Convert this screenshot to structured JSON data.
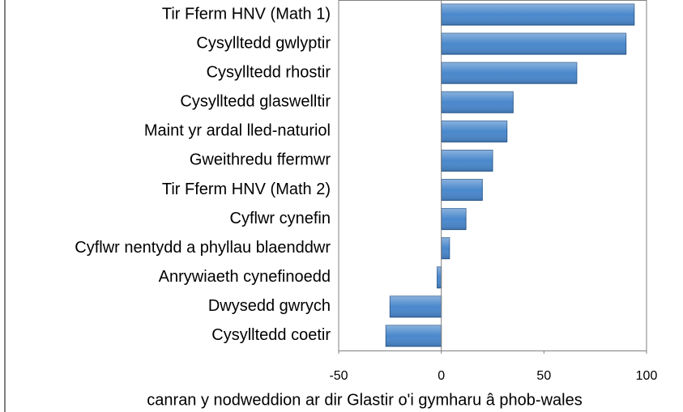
{
  "chart_data": {
    "type": "bar",
    "orientation": "horizontal",
    "categories": [
      "Tir Fferm HNV (Math 1)",
      "Cysylltedd gwlyptir",
      "Cysylltedd rhostir",
      "Cysylltedd glaswelltir",
      "Maint yr ardal lled-naturiol",
      "Gweithredu ffermwr",
      "Tir Fferm HNV (Math 2)",
      "Cyflwr cynefin",
      "Cyflwr nentydd a phyllau blaenddwr",
      "Anrywiaeth cynefinoedd",
      "Dwysedd gwrych",
      "Cysylltedd coetir"
    ],
    "values": [
      94,
      90,
      66,
      35,
      32,
      25,
      20,
      12,
      4,
      -2,
      -25,
      -27
    ],
    "color": "#4a88cc",
    "xlim": [
      -50,
      100
    ],
    "xticks": [
      -50,
      0,
      50,
      100
    ],
    "xlabel": "canran y nodweddion ar dir Glastir o'i gymharu â phob-wales"
  }
}
